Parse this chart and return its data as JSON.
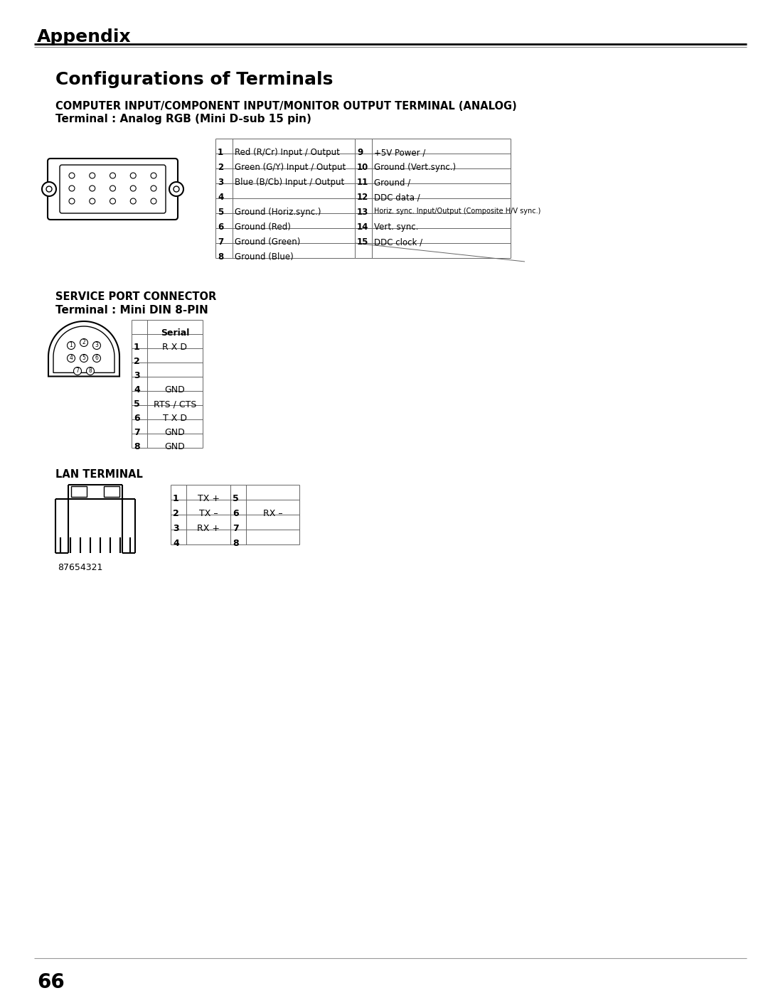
{
  "page_title": "Appendix",
  "section_title": "Configurations of Terminals",
  "subsection1_title": "COMPUTER INPUT/COMPONENT INPUT/MONITOR OUTPUT TERMINAL (ANALOG)",
  "subsection1_subtitle": "Terminal : Analog RGB (Mini D-sub 15 pin)",
  "analog_table": {
    "left_pins": [
      [
        "1",
        "Red (R/Cr) Input / Output"
      ],
      [
        "2",
        "Green (G/Y) Input / Output"
      ],
      [
        "3",
        "Blue (B/Cb) Input / Output"
      ],
      [
        "4",
        ""
      ],
      [
        "5",
        "Ground (Horiz.sync.)"
      ],
      [
        "6",
        "Ground (Red)"
      ],
      [
        "7",
        "Ground (Green)"
      ],
      [
        "8",
        "Ground (Blue)"
      ]
    ],
    "right_pins": [
      [
        "9",
        "+5V Power /"
      ],
      [
        "10",
        "Ground (Vert.sync.)"
      ],
      [
        "11",
        "Ground /"
      ],
      [
        "12",
        "DDC data /"
      ],
      [
        "13",
        "Horiz. sync. Input/Output (Composite H/V sync.)"
      ],
      [
        "14",
        "Vert. sync."
      ],
      [
        "15",
        "DDC clock /"
      ],
      [
        "",
        ""
      ]
    ]
  },
  "subsection2_title": "SERVICE PORT CONNECTOR",
  "subsection2_subtitle": "Terminal : Mini DIN 8-PIN",
  "serial_table": {
    "header": "Serial",
    "rows": [
      [
        "1",
        "R X D"
      ],
      [
        "2",
        ""
      ],
      [
        "3",
        ""
      ],
      [
        "4",
        "GND"
      ],
      [
        "5",
        "RTS / CTS"
      ],
      [
        "6",
        "T X D"
      ],
      [
        "7",
        "GND"
      ],
      [
        "8",
        "GND"
      ]
    ]
  },
  "subsection3_title": "LAN TERMINAL",
  "lan_table": {
    "left_rows": [
      [
        "1",
        "TX +"
      ],
      [
        "2",
        "TX –"
      ],
      [
        "3",
        "RX +"
      ],
      [
        "4",
        ""
      ]
    ],
    "right_rows": [
      [
        "5",
        ""
      ],
      [
        "6",
        "RX –"
      ],
      [
        "7",
        ""
      ],
      [
        "8",
        ""
      ]
    ]
  },
  "lan_label": "87654321",
  "page_number": "66",
  "bg_color": "#ffffff"
}
